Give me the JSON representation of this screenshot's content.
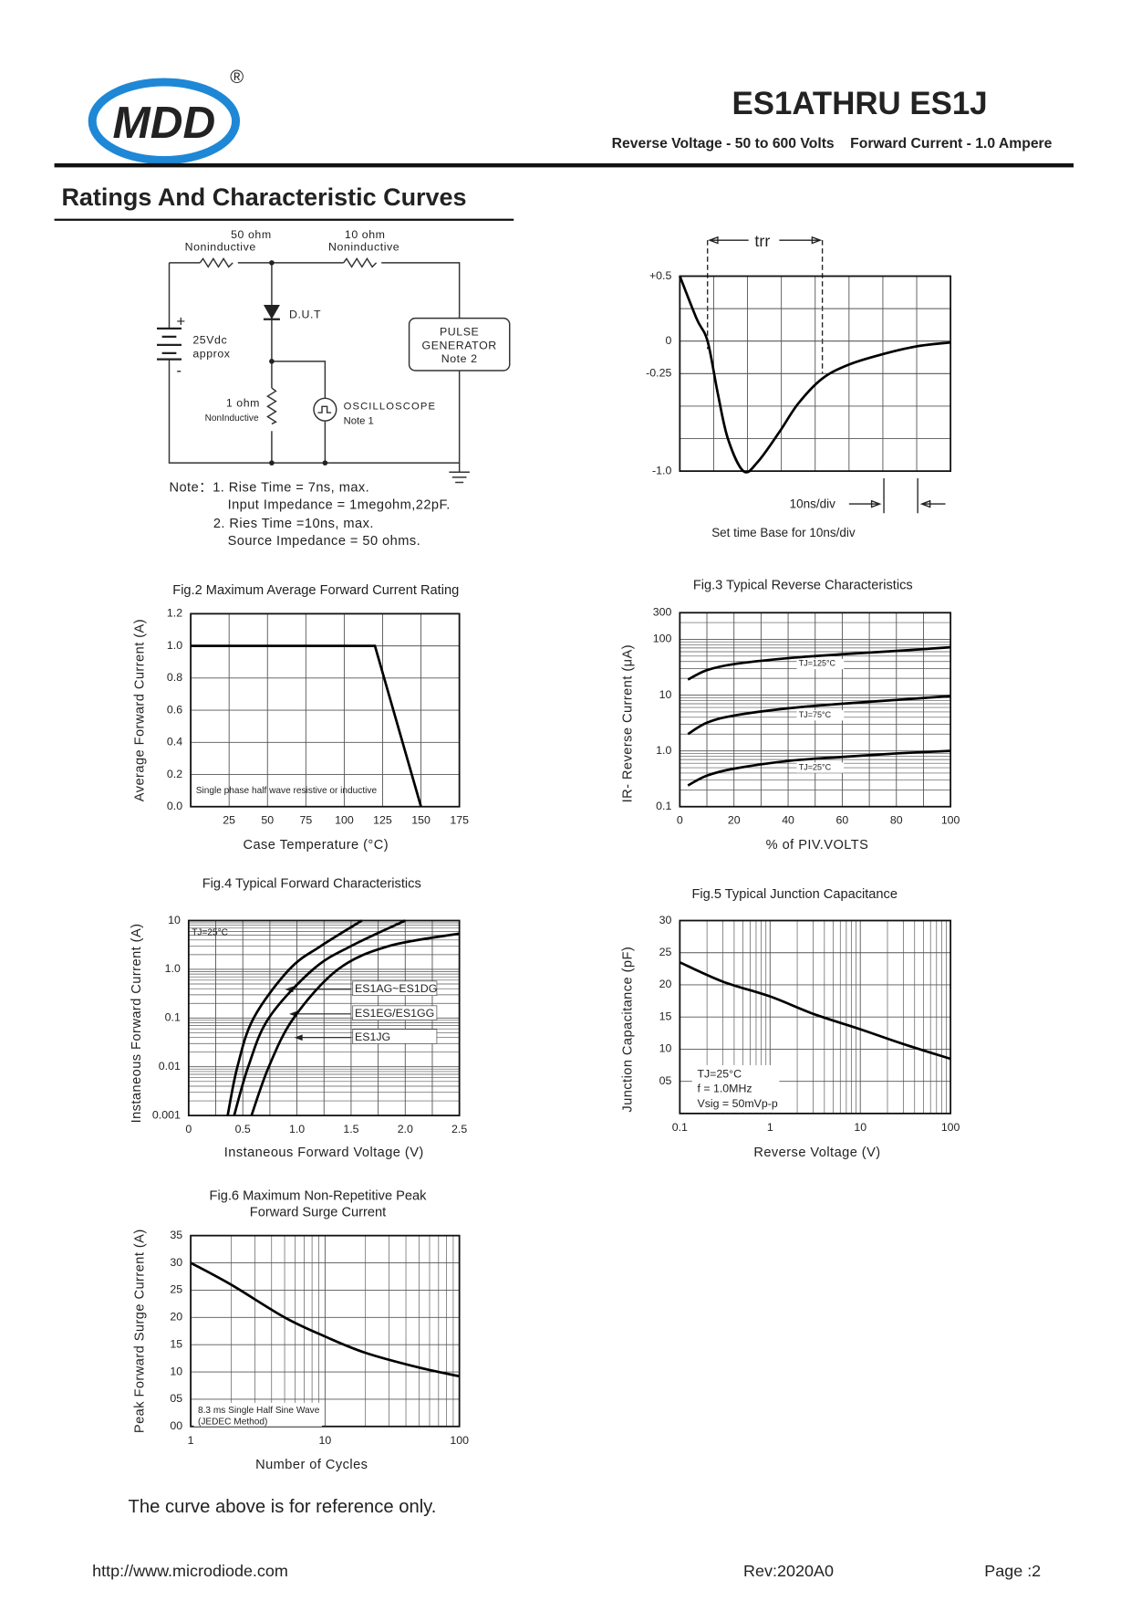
{
  "header": {
    "logo": "MDD",
    "registered": "®",
    "title": "ES1ATHRU ES1J",
    "subtitle": "Reverse Voltage - 50 to 600 Volts    Forward Current - 1.0 Ampere"
  },
  "section_title": "Ratings And Characteristic Curves",
  "circuit": {
    "labels": [
      "50 ohm",
      "Noninductive",
      "10 ohm",
      "Noninductive",
      "D.U.T",
      "+",
      "25Vdc",
      "approx",
      "-",
      "PULSE",
      "GENERATOR",
      "Note 2",
      "1 ohm",
      "NonInductive",
      "OSCILLOSCOPE",
      "Note 1"
    ],
    "notes": [
      "Note：1. Rise Time = 7ns, max.",
      "Input Impedance = 1megohm,22pF.",
      "2. Ries Time =10ns, max.",
      "Source Impedance = 50 ohms."
    ]
  },
  "figures": [
    {
      "type": "line",
      "annotations": [
        "trr",
        "10ns/div",
        "Set time Base for 10ns/div"
      ],
      "xlim": [
        0,
        8
      ],
      "ylim": [
        -1,
        0.5
      ],
      "yticks": [
        {
          "value": 0.5,
          "label": "+0.5"
        },
        0,
        -0.25,
        {
          "value": -1,
          "label": "-1.0"
        }
      ],
      "series": [
        {
          "color": "#000000",
          "x": [
            0,
            0.5,
            0.82,
            1.12,
            1.42,
            1.88,
            2.3,
            2.94,
            3.5,
            4.2,
            5,
            6,
            7,
            8
          ],
          "values": [
            0.5,
            0.17,
            0,
            -0.4,
            -0.75,
            -1,
            -0.93,
            -0.7,
            -0.48,
            -0.29,
            -0.18,
            -0.1,
            -0.04,
            -0.01
          ]
        }
      ]
    },
    {
      "type": "line",
      "title": "Fig.2  Maximum Average Forward Current Rating",
      "xlabel": "Case Temperature (°C)",
      "ylabel": "Average Forward Current  (A)",
      "xlim": [
        0,
        175
      ],
      "xticks": [
        25,
        50,
        75,
        100,
        125,
        150,
        175
      ],
      "ylim": [
        0,
        1.2
      ],
      "yticks": [
        {
          "value": 0,
          "label": "0.0"
        },
        0.2,
        0.4,
        0.6,
        0.8,
        {
          "value": 1,
          "label": "1.0"
        },
        1.2
      ],
      "grid": true,
      "notes": [
        "Single phase half wave resistive or inductive"
      ],
      "series": [
        {
          "color": "#000000",
          "x": [
            0,
            120,
            150
          ],
          "values": [
            1,
            1,
            0
          ]
        }
      ]
    },
    {
      "type": "line",
      "title": "Fig.3  Typical Reverse Characteristics",
      "xlabel": "% of PIV.VOLTS",
      "ylabel": "IR- Reverse Current (μA)",
      "xlim": [
        0,
        100
      ],
      "xticks": [
        0,
        20,
        40,
        60,
        80,
        100
      ],
      "ylim": [
        0.1,
        300
      ],
      "ylog": true,
      "yticks": [
        0.1,
        {
          "value": 1,
          "label": "1.0"
        },
        10,
        100,
        300
      ],
      "grid": true,
      "series": [
        {
          "name": "TJ=125°C",
          "color": "#000000",
          "x": [
            3,
            10,
            20,
            40,
            60,
            80,
            100
          ],
          "values": [
            19,
            28,
            36,
            46,
            54,
            62,
            72
          ]
        },
        {
          "name": "TJ=75°C",
          "color": "#000000",
          "x": [
            3,
            10,
            20,
            40,
            60,
            80,
            100
          ],
          "values": [
            2,
            3.2,
            4.3,
            5.8,
            7,
            8.2,
            9.6
          ]
        },
        {
          "name": "TJ=25°C",
          "color": "#000000",
          "x": [
            3,
            10,
            20,
            40,
            60,
            80,
            100
          ],
          "values": [
            0.24,
            0.36,
            0.48,
            0.66,
            0.78,
            0.9,
            1
          ]
        }
      ]
    },
    {
      "type": "line",
      "title": "Fig.4  Typical Forward Characteristics",
      "xlabel": "Instaneous Forward Voltage (V)",
      "ylabel": "Instaneous Forward Current (A)",
      "xlim": [
        0,
        2.5
      ],
      "xticks": [
        0,
        0.5,
        {
          "value": 1,
          "label": "1.0"
        },
        1.5,
        {
          "value": 2,
          "label": "2.0"
        },
        2.5
      ],
      "ylim": [
        0.001,
        10
      ],
      "ylog": true,
      "yticks": [
        0.001,
        0.01,
        0.1,
        {
          "value": 1,
          "label": "1.0"
        },
        10
      ],
      "grid": true,
      "notes": [
        "TJ=25°C"
      ],
      "series": [
        {
          "name": "ES1AG~ES1DG",
          "color": "#000000",
          "x": [
            0.36,
            0.45,
            0.6,
            0.93,
            1.22,
            1.6
          ],
          "values": [
            0.001,
            0.01,
            0.1,
            1,
            3,
            10
          ]
        },
        {
          "name": "ES1EG/ES1GG",
          "color": "#000000",
          "x": [
            0.42,
            0.55,
            0.74,
            1.15,
            1.5,
            2.0
          ],
          "values": [
            0.001,
            0.01,
            0.1,
            1,
            3,
            10
          ]
        },
        {
          "name": "ES1JG",
          "color": "#000000",
          "x": [
            0.58,
            0.74,
            0.97,
            1.38,
            1.85,
            2.5
          ],
          "values": [
            0.001,
            0.01,
            0.1,
            1,
            3,
            5.4
          ]
        }
      ]
    },
    {
      "type": "line",
      "title": "Fig.5  Typical Junction Capacitance",
      "xlabel": "Reverse  Voltage (V)",
      "ylabel": "Junction Capacitance (pF)",
      "xlim": [
        0.1,
        100
      ],
      "xlog": true,
      "xticks": [
        0.1,
        1,
        10,
        100
      ],
      "ylim": [
        0,
        30
      ],
      "yticks": [
        {
          "value": 5,
          "label": "05"
        },
        10,
        15,
        20,
        25,
        30
      ],
      "grid": true,
      "notes": [
        "TJ=25°C",
        "f = 1.0MHz",
        "Vsig = 50mVp-p"
      ],
      "series": [
        {
          "color": "#000000",
          "x": [
            0.1,
            0.3,
            1,
            3,
            10,
            30,
            100
          ],
          "values": [
            23.5,
            20.5,
            18.2,
            15.5,
            13.1,
            10.8,
            8.5
          ]
        }
      ]
    },
    {
      "type": "line",
      "title": [
        "Fig.6  Maximum Non-Repetitive Peak",
        "Forward Surge Current"
      ],
      "xlabel": "Number of Cycles",
      "ylabel": "Peak Forward Surge Current (A)",
      "xlim": [
        1,
        100
      ],
      "xlog": true,
      "xticks": [
        1,
        10,
        100
      ],
      "ylim": [
        0,
        35
      ],
      "yticks": [
        {
          "value": 0,
          "label": "00"
        },
        {
          "value": 5,
          "label": "05"
        },
        10,
        15,
        20,
        25,
        30,
        35
      ],
      "grid": true,
      "notes": [
        "8.3 ms Single Half Sine Wave",
        "(JEDEC Method)"
      ],
      "series": [
        {
          "color": "#000000",
          "x": [
            1,
            2,
            5,
            10,
            20,
            50,
            100
          ],
          "values": [
            30,
            26,
            20,
            16.5,
            13.5,
            10.8,
            9.2
          ]
        }
      ]
    }
  ],
  "footnote": "The curve above is for reference only.",
  "footer": {
    "url": "http://www.microdiode.com",
    "rev": "Rev:2020A0",
    "page": "Page :2"
  }
}
